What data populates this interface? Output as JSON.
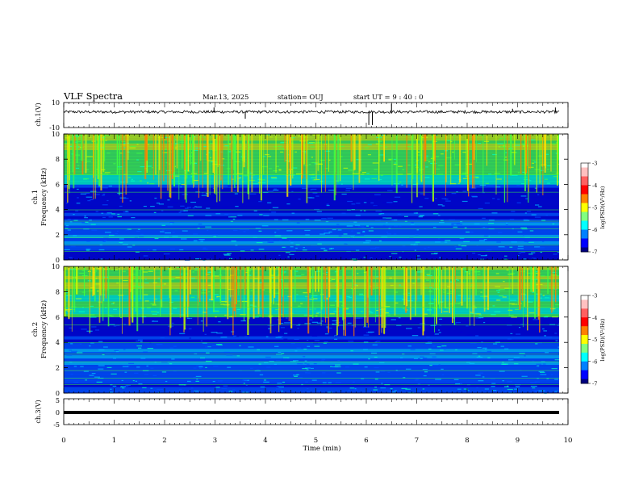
{
  "header": {
    "title": "VLF Spectra",
    "date": "Mar.13, 2025",
    "station": "station= OUJ",
    "start_ut": "start  UT =   9 : 40 : 0"
  },
  "chart_data": [
    {
      "type": "line",
      "name": "ch1-waveform",
      "ylabel": "ch.1(V)",
      "ylim": [
        -10,
        10
      ],
      "y_ticks": [
        "10",
        "-10"
      ],
      "xlim": [
        0,
        10
      ],
      "baseline": 2.5,
      "spikes": [
        {
          "x": 2.98,
          "y": 6
        },
        {
          "x": 3.6,
          "y": -3
        },
        {
          "x": 6.05,
          "y": -8
        },
        {
          "x": 6.12,
          "y": -8
        },
        {
          "x": 6.5,
          "y": 9
        },
        {
          "x": 8.9,
          "y": 5
        },
        {
          "x": 9.75,
          "y": 6
        }
      ]
    },
    {
      "type": "heatmap",
      "name": "ch1-spectrogram",
      "ylabel_line1": "ch.1",
      "ylabel_line2": "Frequency (kHz)",
      "xlim": [
        0,
        10
      ],
      "ylim": [
        0,
        10
      ],
      "y_ticks": [
        "0",
        "2",
        "4",
        "6",
        "8",
        "10"
      ],
      "colorbar": {
        "label": "log(PSD)(V²/Hz)",
        "range": [
          -7,
          -3
        ],
        "ticks": [
          "-3",
          "-4",
          "-5",
          "-6",
          "-7"
        ]
      },
      "quiet_band_khz": [
        3,
        6
      ],
      "active_band_khz": [
        6,
        10
      ]
    },
    {
      "type": "heatmap",
      "name": "ch2-spectrogram",
      "ylabel_line1": "ch.2",
      "ylabel_line2": "Frequency (kHz)",
      "xlim": [
        0,
        10
      ],
      "ylim": [
        0,
        10
      ],
      "y_ticks": [
        "0",
        "2",
        "4",
        "6",
        "8",
        "10"
      ],
      "colorbar": {
        "label": "log(PSD)(V²/Hz)",
        "range": [
          -7,
          -3
        ],
        "ticks": [
          "-3",
          "-4",
          "-5",
          "-6",
          "-7"
        ]
      },
      "quiet_band_khz": [
        4,
        6
      ],
      "active_band_khz": [
        6,
        10
      ]
    },
    {
      "type": "line",
      "name": "ch3-trace",
      "ylabel": "ch.3(V)",
      "ylim": [
        -5,
        5
      ],
      "y_ticks": [
        "5",
        "0",
        "-5"
      ],
      "xlim": [
        0,
        10
      ],
      "values_constant": 0
    }
  ],
  "x_axis": {
    "label": "Time (min)",
    "ticks": [
      "0",
      "1",
      "2",
      "3",
      "4",
      "5",
      "6",
      "7",
      "8",
      "9",
      "10"
    ],
    "range": [
      0,
      10
    ]
  },
  "colors": {
    "axis": "#000000",
    "background": "#ffffff",
    "colormap": [
      "#000070",
      "#0000d0",
      "#0050ff",
      "#00c0ff",
      "#00ffc0",
      "#40ff40",
      "#c0ff00",
      "#ffe000",
      "#ff8000",
      "#ff2000",
      "#d00000",
      "#ffffff"
    ]
  }
}
